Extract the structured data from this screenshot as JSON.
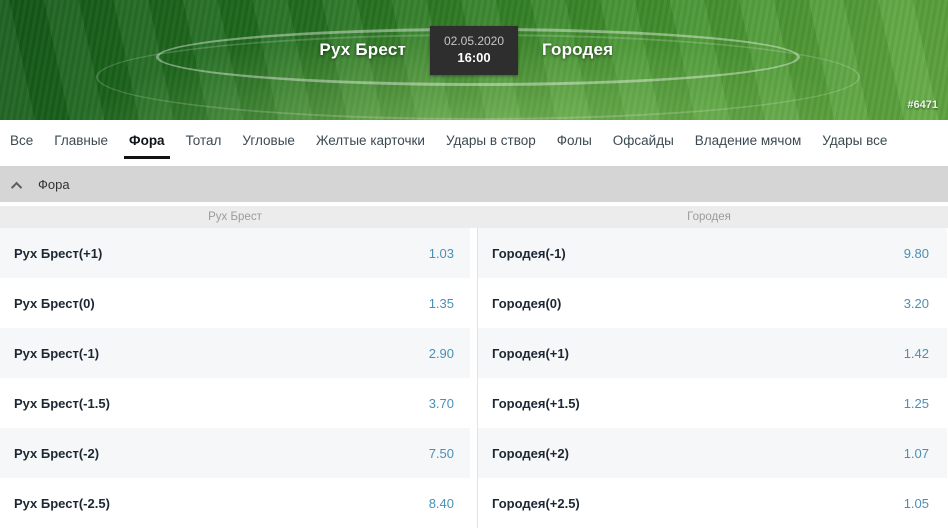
{
  "header": {
    "team_home": "Рух Брест",
    "team_away": "Городея",
    "date": "02.05.2020",
    "time": "16:00",
    "match_id": "#6471"
  },
  "tabs": [
    {
      "label": "Все",
      "active": false
    },
    {
      "label": "Главные",
      "active": false
    },
    {
      "label": "Фора",
      "active": true
    },
    {
      "label": "Тотал",
      "active": false
    },
    {
      "label": "Угловые",
      "active": false
    },
    {
      "label": "Желтые карточки",
      "active": false
    },
    {
      "label": "Удары в створ",
      "active": false
    },
    {
      "label": "Фолы",
      "active": false
    },
    {
      "label": "Офсайды",
      "active": false
    },
    {
      "label": "Владение мячом",
      "active": false
    },
    {
      "label": "Удары все",
      "active": false
    }
  ],
  "section": {
    "title": "Фора",
    "collapse_icon": "chevron-up"
  },
  "market": {
    "columns": {
      "left": "Рух Брест",
      "right": "Городея"
    },
    "rows": [
      {
        "left": {
          "label": "Рух Брест(+1)",
          "odds": "1.03"
        },
        "right": {
          "label": "Городея(-1)",
          "odds": "9.80"
        }
      },
      {
        "left": {
          "label": "Рух Брест(0)",
          "odds": "1.35"
        },
        "right": {
          "label": "Городея(0)",
          "odds": "3.20"
        }
      },
      {
        "left": {
          "label": "Рух Брест(-1)",
          "odds": "2.90"
        },
        "right": {
          "label": "Городея(+1)",
          "odds": "1.42"
        }
      },
      {
        "left": {
          "label": "Рух Брест(-1.5)",
          "odds": "3.70"
        },
        "right": {
          "label": "Городея(+1.5)",
          "odds": "1.25"
        }
      },
      {
        "left": {
          "label": "Рух Брест(-2)",
          "odds": "7.50"
        },
        "right": {
          "label": "Городея(+2)",
          "odds": "1.07"
        }
      },
      {
        "left": {
          "label": "Рух Брест(-2.5)",
          "odds": "8.40"
        },
        "right": {
          "label": "Городея(+2.5)",
          "odds": "1.05"
        }
      }
    ]
  },
  "colors": {
    "odds_blue": "#4a90b4",
    "field_green_dark": "#145a18",
    "field_green_light": "#63ab43",
    "section_bar_gray": "#d5d5d5",
    "col_header_gray": "#ececec",
    "row_shade": "#f6f7f8"
  }
}
